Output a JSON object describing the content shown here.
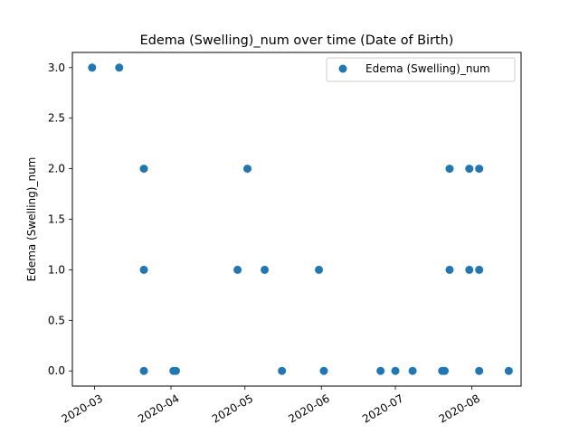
{
  "chart_data": {
    "type": "scatter",
    "title": "Edema (Swelling)_num over time (Date of Birth)",
    "xlabel": "",
    "ylabel": "Edema (Swelling)_num",
    "xlim": [
      "2020-02-21",
      "2020-08-21"
    ],
    "ylim": [
      -0.15,
      3.15
    ],
    "x_ticks": [
      "2020-03-01",
      "2020-04-01",
      "2020-05-01",
      "2020-06-01",
      "2020-07-01",
      "2020-08-01"
    ],
    "x_tick_labels": [
      "2020-03",
      "2020-04",
      "2020-05",
      "2020-06",
      "2020-07",
      "2020-08"
    ],
    "y_ticks": [
      0.0,
      0.5,
      1.0,
      1.5,
      2.0,
      2.5,
      3.0
    ],
    "y_tick_labels": [
      "0.0",
      "0.5",
      "1.0",
      "1.5",
      "2.0",
      "2.5",
      "3.0"
    ],
    "grid": false,
    "legend": {
      "position": "top-right"
    },
    "series": [
      {
        "name": "Edema (Swelling)_num",
        "color": "#1f77b4",
        "points": [
          {
            "x": "2020-02-29",
            "y": 3
          },
          {
            "x": "2020-03-11",
            "y": 3
          },
          {
            "x": "2020-03-21",
            "y": 2
          },
          {
            "x": "2020-03-21",
            "y": 1
          },
          {
            "x": "2020-03-21",
            "y": 0
          },
          {
            "x": "2020-04-02",
            "y": 0
          },
          {
            "x": "2020-04-03",
            "y": 0
          },
          {
            "x": "2020-04-28",
            "y": 1
          },
          {
            "x": "2020-05-02",
            "y": 2
          },
          {
            "x": "2020-05-09",
            "y": 1
          },
          {
            "x": "2020-05-16",
            "y": 0
          },
          {
            "x": "2020-05-31",
            "y": 1
          },
          {
            "x": "2020-06-02",
            "y": 0
          },
          {
            "x": "2020-06-25",
            "y": 0
          },
          {
            "x": "2020-07-01",
            "y": 0
          },
          {
            "x": "2020-07-08",
            "y": 0
          },
          {
            "x": "2020-07-20",
            "y": 0
          },
          {
            "x": "2020-07-21",
            "y": 0
          },
          {
            "x": "2020-07-23",
            "y": 2
          },
          {
            "x": "2020-07-23",
            "y": 1
          },
          {
            "x": "2020-07-31",
            "y": 2
          },
          {
            "x": "2020-07-31",
            "y": 1
          },
          {
            "x": "2020-08-04",
            "y": 2
          },
          {
            "x": "2020-08-04",
            "y": 1
          },
          {
            "x": "2020-08-04",
            "y": 0
          },
          {
            "x": "2020-08-16",
            "y": 0
          }
        ]
      }
    ]
  }
}
